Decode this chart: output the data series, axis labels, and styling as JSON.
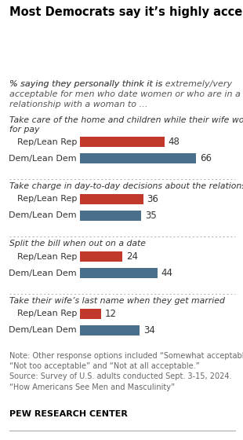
{
  "title": "Most Democrats say it’s highly acceptable for a man to focus on home and kids while his wife works for pay",
  "subtitle_plain": "% saying they personally think it is ",
  "subtitle_bold_italic": "extremely/very\nacceptable",
  "subtitle_rest": " for men who date women or who are in a\nrelationship with a woman to …",
  "sections": [
    {
      "label": "Take care of the home and children while their wife works\nfor pay",
      "rep_value": 48,
      "dem_value": 66
    },
    {
      "label": "Take charge in day-to-day decisions about the relationship",
      "rep_value": 36,
      "dem_value": 35
    },
    {
      "label": "Split the bill when out on a date",
      "rep_value": 24,
      "dem_value": 44
    },
    {
      "label": "Take their wife’s last name when they get married",
      "rep_value": 12,
      "dem_value": 34
    }
  ],
  "rep_label": "Rep/Lean Rep",
  "dem_label": "Dem/Lean Dem",
  "rep_color": "#c0392b",
  "dem_color": "#4a6f8a",
  "xlim_max": 75,
  "note_line1": "Note: Other response options included “Somewhat acceptable,”",
  "note_line2": "“Not too acceptable” and “Not at all acceptable.”",
  "note_line3": "Source: Survey of U.S. adults conducted Sept. 3-15, 2024.",
  "note_line4": "“How Americans See Men and Masculinity”",
  "source_label": "PEW RESEARCH CENTER",
  "bg_color": "#ffffff",
  "title_fontsize": 10.5,
  "subtitle_fontsize": 8.0,
  "section_label_fontsize": 7.8,
  "bar_label_fontsize": 8.0,
  "value_label_fontsize": 8.5,
  "note_fontsize": 7.0
}
